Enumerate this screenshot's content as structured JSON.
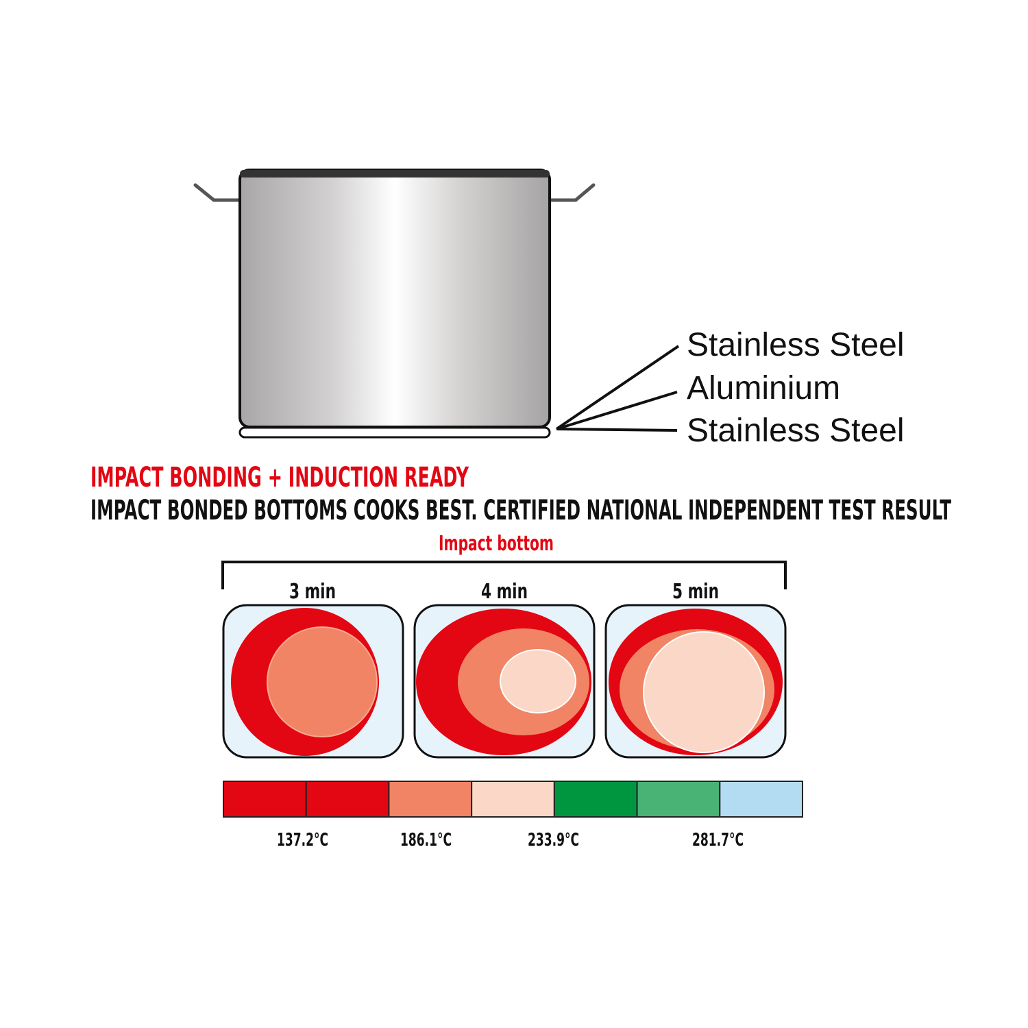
{
  "layers": {
    "labels": [
      "Stainless Steel",
      "Aluminium",
      "Stainless Steel"
    ]
  },
  "headline": "IMPACT BONDING + INDUCTION READY",
  "subheadline": "IMPACT BONDED BOTTOMS COOKS BEST. CERTIFIED NATIONAL INDEPENDENT TEST RESULT",
  "group_label": "Impact bottom",
  "panels": [
    {
      "label": "3 min"
    },
    {
      "label": "4 min"
    },
    {
      "label": "5 min"
    }
  ],
  "legend": {
    "colors": [
      "#e30613",
      "#e30613",
      "#f08465",
      "#fbd7c7",
      "#009640",
      "#48b374",
      "#b3dcf3"
    ],
    "labels": [
      "137.2°C",
      "186.1°C",
      "233.9°C",
      "281.7°C"
    ]
  },
  "colors": {
    "accent_red": "#e30613",
    "panel_bg": "#e6f3fb"
  }
}
